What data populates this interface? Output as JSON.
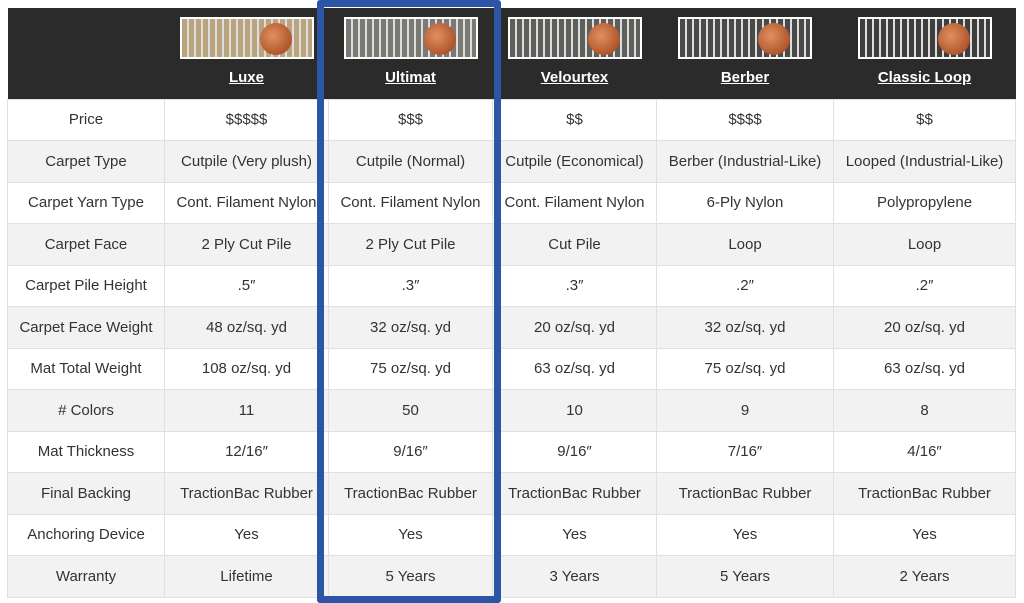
{
  "columns": [
    {
      "name": "Luxe",
      "swatch": "#b9a47e"
    },
    {
      "name": "Ultimat",
      "swatch": "#7a7a74"
    },
    {
      "name": "Velourtex",
      "swatch": "#5e5e5a"
    },
    {
      "name": "Berber",
      "swatch": "#4a4a48"
    },
    {
      "name": "Classic Loop",
      "swatch": "#3e3e3c"
    }
  ],
  "highlighted_column": "Ultimat",
  "highlight_color": "#2c55a8",
  "rows": [
    {
      "label": "Price",
      "values": [
        "$$$$$",
        "$$$",
        "$$",
        "$$$$",
        "$$"
      ]
    },
    {
      "label": "Carpet Type",
      "values": [
        "Cutpile (Very plush)",
        "Cutpile (Normal)",
        "Cutpile (Economical)",
        "Berber (Industrial-Like)",
        "Looped (Industrial-Like)"
      ]
    },
    {
      "label": "Carpet Yarn Type",
      "values": [
        "Cont. Filament Nylon",
        "Cont. Filament Nylon",
        "Cont. Filament Nylon",
        "6-Ply Nylon",
        "Polypropylene"
      ]
    },
    {
      "label": "Carpet Face",
      "values": [
        "2 Ply Cut Pile",
        "2 Ply Cut Pile",
        "Cut Pile",
        "Loop",
        "Loop"
      ]
    },
    {
      "label": "Carpet Pile Height",
      "values": [
        ".5″",
        ".3″",
        ".3″",
        ".2″",
        ".2″"
      ]
    },
    {
      "label": "Carpet Face Weight",
      "values": [
        "48 oz/sq. yd",
        "32 oz/sq. yd",
        "20 oz/sq. yd",
        "32 oz/sq. yd",
        "20 oz/sq. yd"
      ]
    },
    {
      "label": "Mat Total Weight",
      "values": [
        "108 oz/sq. yd",
        "75 oz/sq. yd",
        "63 oz/sq. yd",
        "75 oz/sq. yd",
        "63 oz/sq. yd"
      ]
    },
    {
      "label": "# Colors",
      "values": [
        "11",
        "50",
        "10",
        "9",
        "8"
      ]
    },
    {
      "label": "Mat Thickness",
      "values": [
        "12/16″",
        "9/16″",
        "9/16″",
        "7/16″",
        "4/16″"
      ]
    },
    {
      "label": "Final Backing",
      "values": [
        "TractionBac Rubber",
        "TractionBac Rubber",
        "TractionBac Rubber",
        "TractionBac Rubber",
        "TractionBac Rubber"
      ]
    },
    {
      "label": "Anchoring Device",
      "values": [
        "Yes",
        "Yes",
        "Yes",
        "Yes",
        "Yes"
      ]
    },
    {
      "label": "Warranty",
      "values": [
        "Lifetime",
        "5 Years",
        "3 Years",
        "5 Years",
        "2 Years"
      ]
    }
  ]
}
